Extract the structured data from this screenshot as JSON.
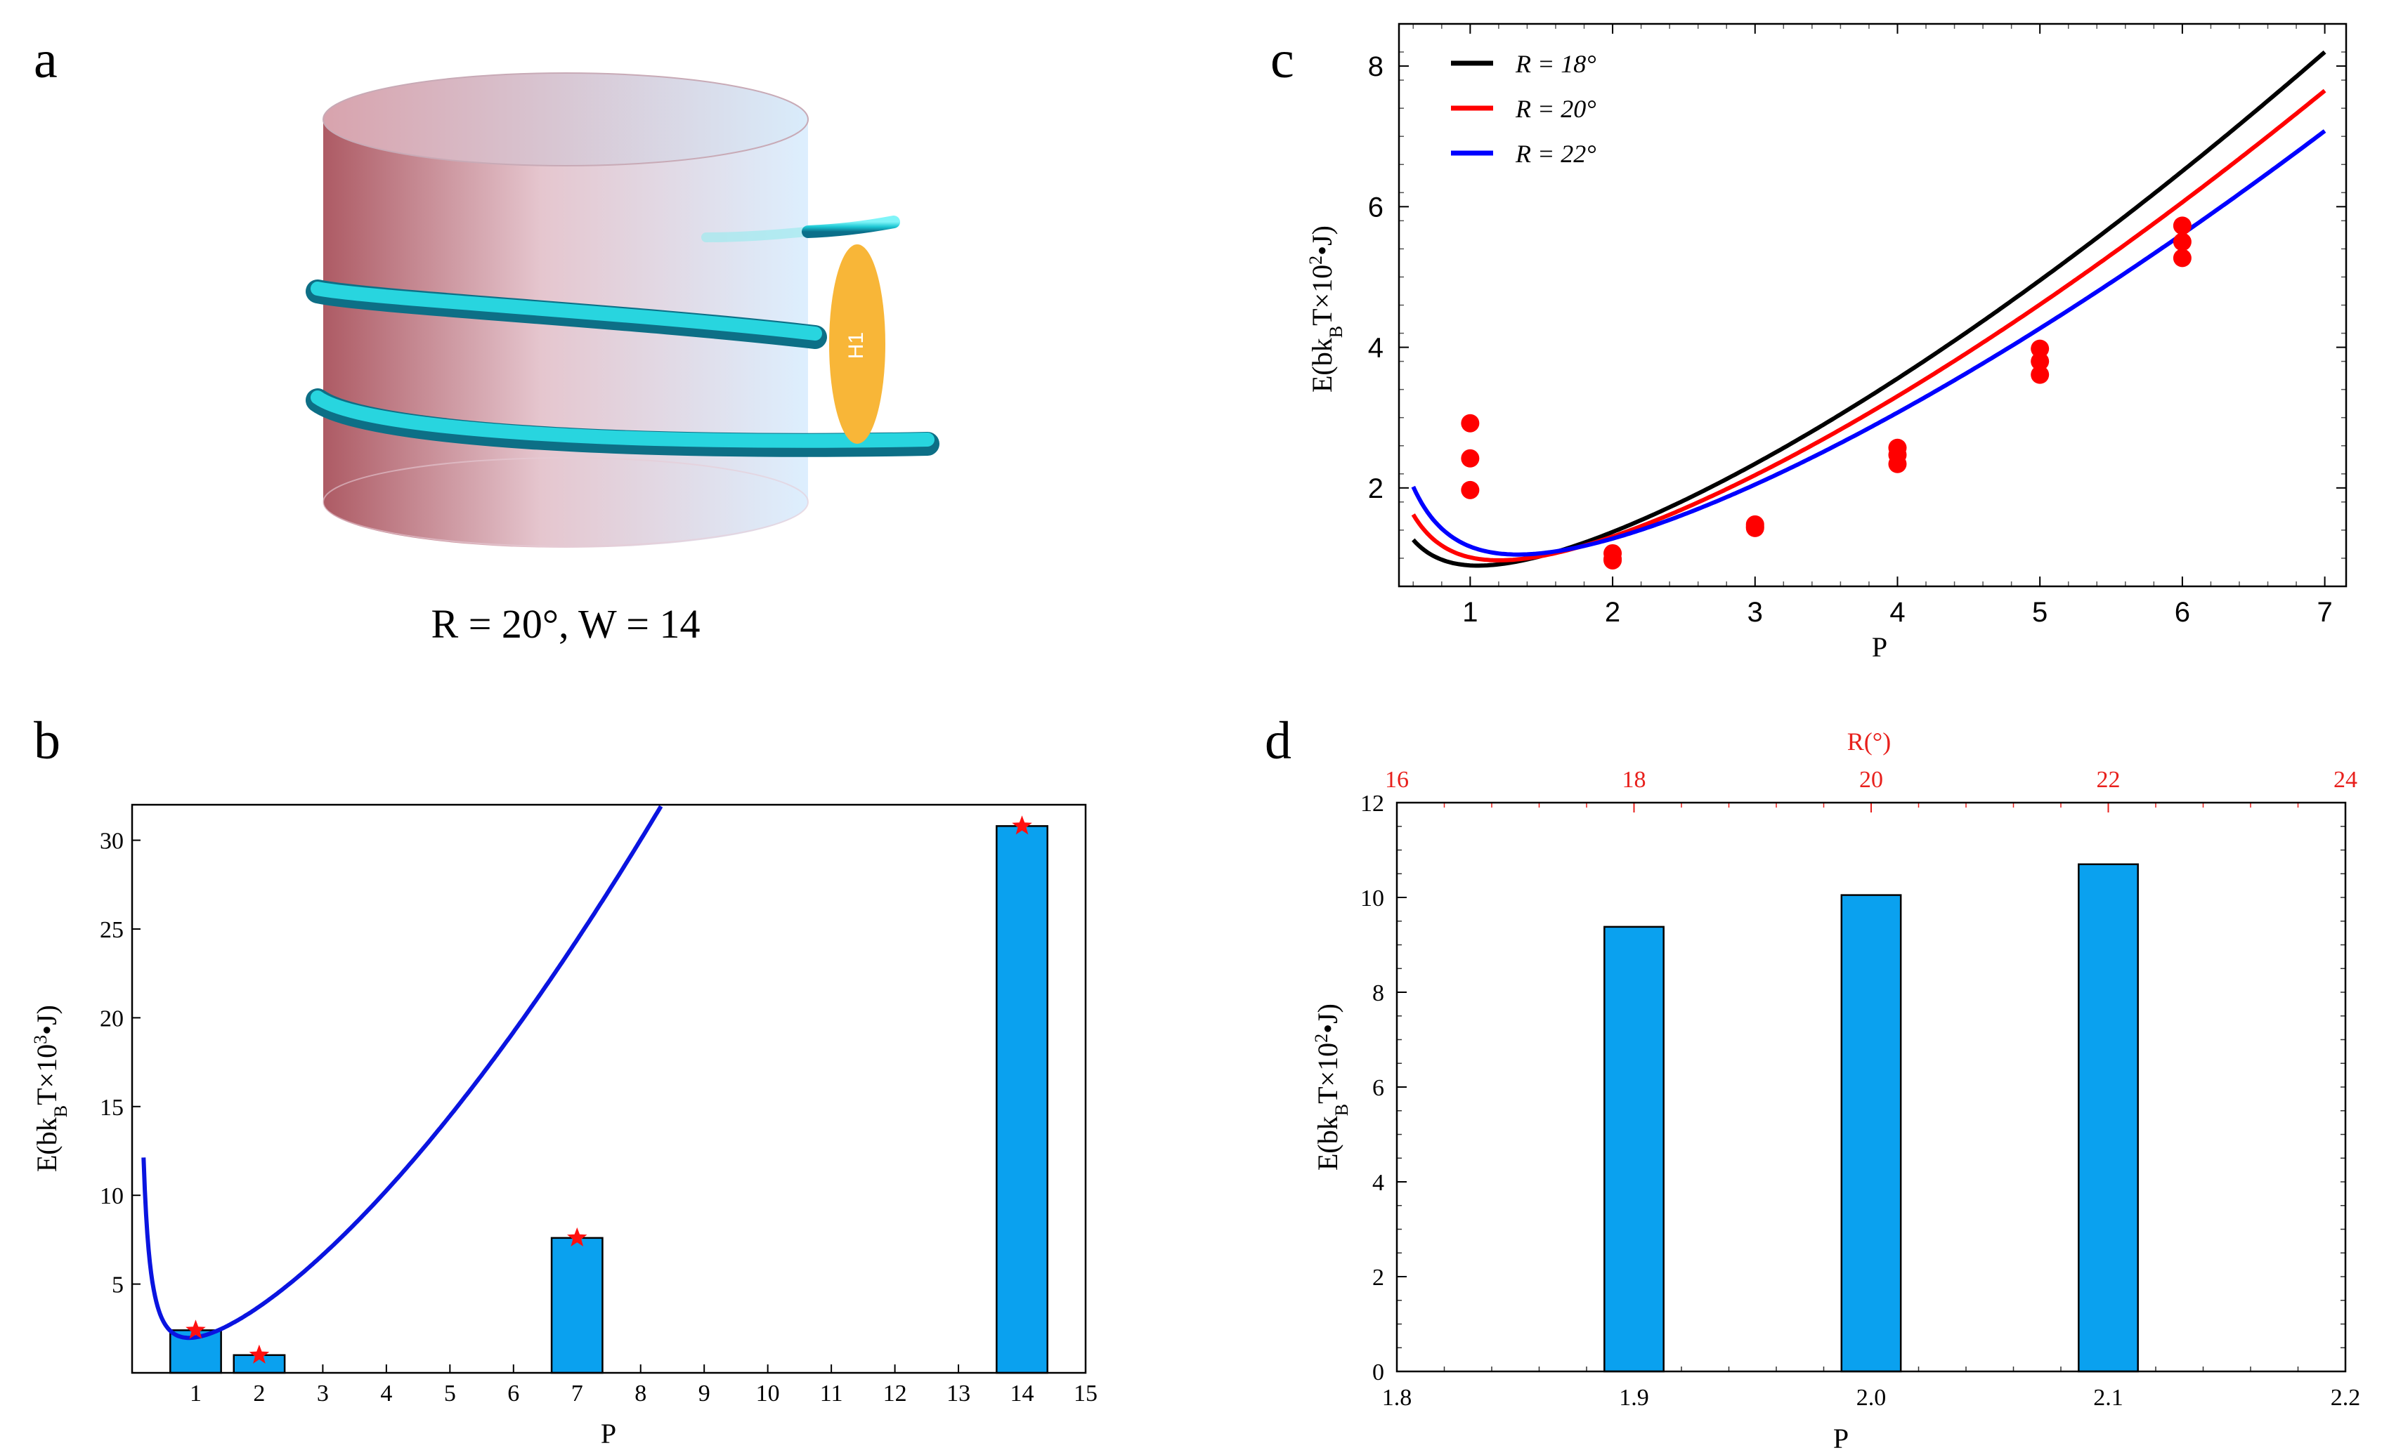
{
  "panel_a": {
    "letter": "a",
    "caption": "R = 20°, W = 14",
    "ellipse_label": "H1",
    "colors": {
      "cylinder_left": "#b35f6a",
      "cylinder_right": "#e8f4ff",
      "helix": "#22d8e0",
      "ellipse": "#f8b638"
    }
  },
  "chart_data": [
    {
      "panel": "b",
      "type": "bar",
      "xlabel": "P",
      "ylabel": "E(bkBT×10³•J)",
      "xlim": [
        0,
        15
      ],
      "ylim": [
        0,
        32
      ],
      "xticks": [
        1,
        2,
        3,
        4,
        5,
        6,
        7,
        8,
        9,
        10,
        11,
        12,
        13,
        14,
        15
      ],
      "yticks": [
        5,
        10,
        15,
        20,
        25,
        30
      ],
      "bars": [
        {
          "x": 1,
          "value": 2.4
        },
        {
          "x": 2,
          "value": 1.0
        },
        {
          "x": 7,
          "value": 7.6
        },
        {
          "x": 14,
          "value": 30.8
        }
      ],
      "bar_color": "#0aa1ef",
      "curve": {
        "color": "#0a14e0",
        "formula": "E = 1.17*P^1.56 + 0.83*P^-1.56"
      },
      "markers": [
        {
          "x": 1,
          "y": 2.4
        },
        {
          "x": 2,
          "y": 1.0
        },
        {
          "x": 7,
          "y": 7.6
        },
        {
          "x": 14,
          "y": 30.8
        }
      ],
      "marker_color": "#ff1010"
    },
    {
      "panel": "c",
      "type": "line",
      "xlabel": "P",
      "ylabel": "E(bkBT×10²•J)",
      "xlim": [
        0.5,
        7.15
      ],
      "ylim": [
        0.6,
        8.6
      ],
      "xticks": [
        1,
        2,
        3,
        4,
        5,
        6,
        7
      ],
      "yticks": [
        2,
        4,
        6,
        8
      ],
      "legend_position": "top-left",
      "series": [
        {
          "name": "R = 18°",
          "color": "#000000",
          "a": 0.445,
          "b": 0.523,
          "p": 1.5,
          "points": [
            [
              1,
              1.97
            ],
            [
              2,
              0.97
            ],
            [
              3,
              1.48
            ],
            [
              4,
              2.57
            ],
            [
              5,
              3.98
            ],
            [
              6,
              5.73
            ]
          ]
        },
        {
          "name": "R = 20°",
          "color": "#ff0000",
          "a": 0.418,
          "b": 0.724,
          "p": 1.5,
          "points": [
            [
              1,
              2.42
            ],
            [
              2,
              0.99
            ],
            [
              3,
              1.45
            ],
            [
              4,
              2.47
            ],
            [
              5,
              3.8
            ],
            [
              6,
              5.5
            ]
          ]
        },
        {
          "name": "R = 22°",
          "color": "#0000ff",
          "a": 0.387,
          "b": 0.919,
          "p": 1.5,
          "points": [
            [
              1,
              2.92
            ],
            [
              2,
              1.07
            ],
            [
              3,
              1.43
            ],
            [
              4,
              2.34
            ],
            [
              5,
              3.61
            ],
            [
              6,
              5.27
            ]
          ]
        }
      ],
      "points_color": "#ff0000"
    },
    {
      "panel": "d",
      "type": "bar",
      "xlabel": "P",
      "ylabel": "E(bkBT×10²•J)",
      "top_xlabel": "R(°)",
      "xlim": [
        1.8,
        2.2
      ],
      "ylim": [
        0,
        12
      ],
      "xticks": [
        "1.8",
        "1.9",
        "2.0",
        "2.1",
        "2.2"
      ],
      "top_xticks": [
        "16",
        "18",
        "20",
        "22",
        "24"
      ],
      "yticks": [
        0,
        2,
        4,
        6,
        8,
        10,
        12
      ],
      "bars": [
        {
          "x": 1.9,
          "value": 9.38
        },
        {
          "x": 2.0,
          "value": 10.05
        },
        {
          "x": 2.1,
          "value": 10.7
        }
      ],
      "bar_color": "#0aa1ef"
    }
  ]
}
